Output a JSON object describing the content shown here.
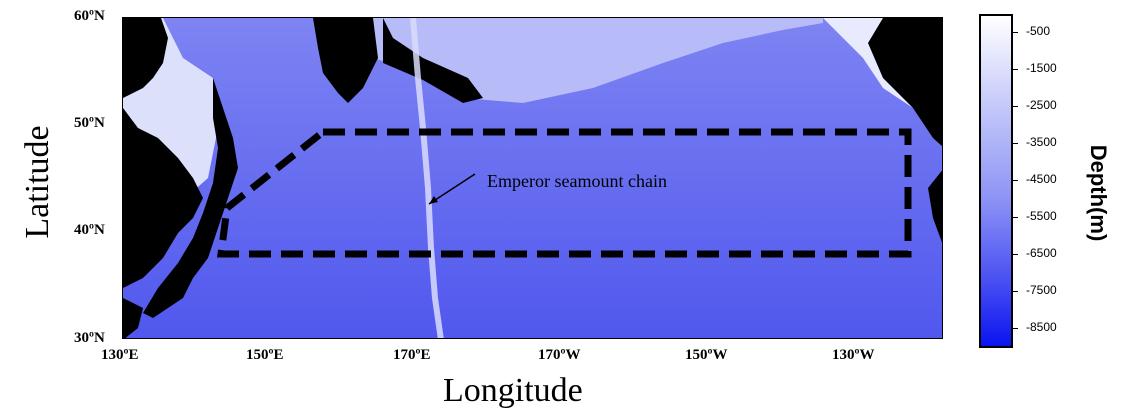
{
  "map": {
    "xaxis_title": "Longitude",
    "yaxis_title": "Latitude",
    "lat_labels": [
      "60ºN",
      "50ºN",
      "40ºN",
      "30ºN"
    ],
    "lon_labels": [
      "130ºE",
      "150ºE",
      "170ºE",
      "170ºW",
      "150ºW",
      "130ºW"
    ],
    "annotation": "Emperor seamount chain",
    "colors": {
      "ocean": "#5a63f0",
      "land": "#000000",
      "shelf": "#ffffff",
      "region_outline": "#000000"
    }
  },
  "colorbar": {
    "title": "Depth(m)",
    "labels": [
      "-500",
      "-1500",
      "-2500",
      "-3500",
      "-4500",
      "-5500",
      "-6500",
      "-7500",
      "-8500"
    ],
    "min_color": "#ffffff",
    "max_color": "#0a14f0"
  }
}
